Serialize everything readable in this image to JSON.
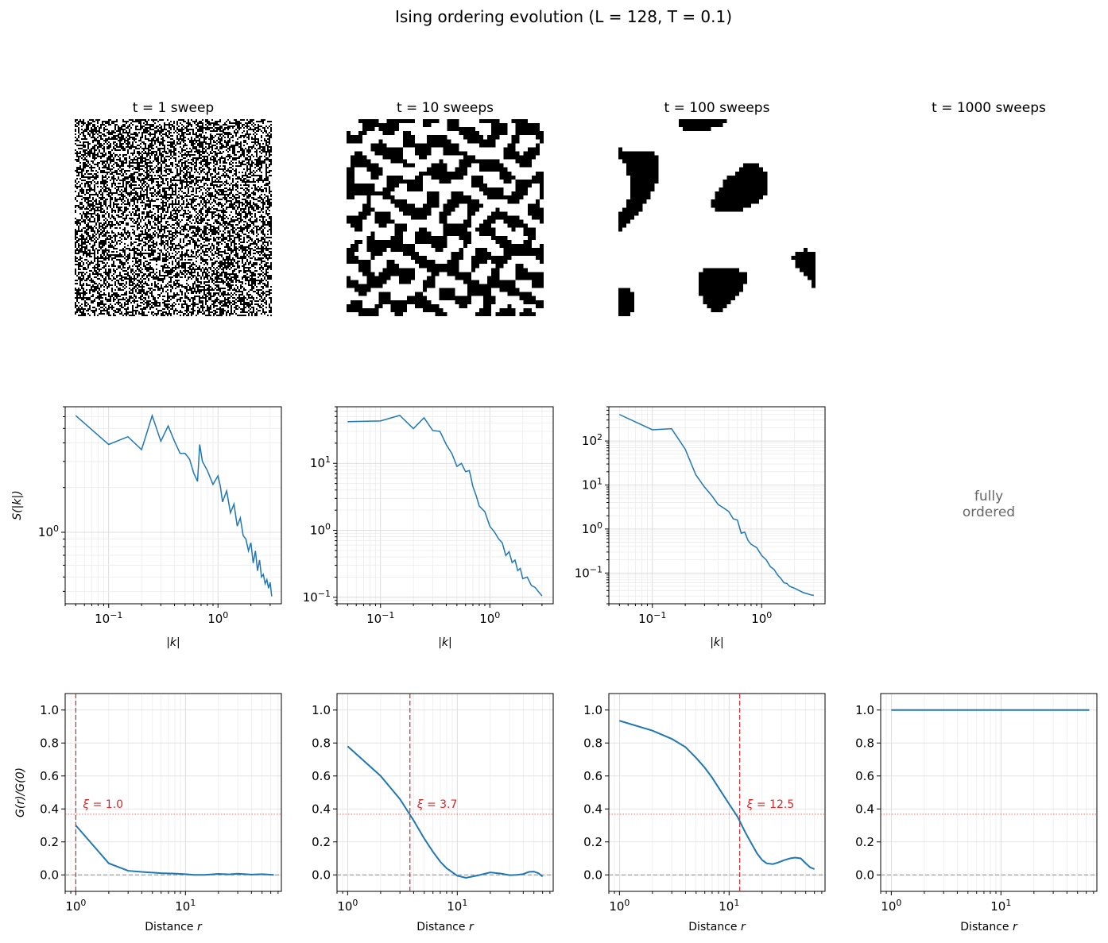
{
  "figure": {
    "title": "Ising ordering evolution  (L = 128, T = 0.1)"
  },
  "chart_data": [
    {
      "type": "heatmap",
      "title": "t = 1 sweep",
      "description_of_values": "random ±1 spins (binary image)",
      "grain": 2,
      "domain_scale": 0,
      "bias": 0.0
    },
    {
      "type": "heatmap",
      "title": "t = 10 sweeps",
      "grain": 5,
      "domain_scale": 28,
      "bias": 0.0
    },
    {
      "type": "heatmap",
      "title": "t = 100 sweeps",
      "grain": 5,
      "domain_scale": 90,
      "bias": 0.22
    },
    {
      "type": "heatmap",
      "title": "t = 1000 sweeps",
      "uniform": true
    },
    {
      "type": "line",
      "xscale": "log",
      "yscale": "log",
      "xlabel": "|k|",
      "ylabel": "S(|k|)",
      "xlim": [
        0.04,
        3.8
      ],
      "ylim": [
        0.33,
        7.0
      ],
      "xticks": [
        0.1,
        1.0
      ],
      "xticklabels": [
        "10⁻¹",
        "10⁰"
      ],
      "yticks": [
        1.0
      ],
      "yticklabels": [
        "10⁰"
      ],
      "x": [
        0.05,
        0.1,
        0.15,
        0.2,
        0.25,
        0.3,
        0.35,
        0.4,
        0.45,
        0.5,
        0.55,
        0.6,
        0.65,
        0.68,
        0.72,
        0.8,
        0.9,
        1.0,
        1.05,
        1.1,
        1.2,
        1.3,
        1.4,
        1.5,
        1.6,
        1.7,
        1.8,
        1.9,
        2.0,
        2.1,
        2.2,
        2.3,
        2.4,
        2.5,
        2.6,
        2.7,
        2.8,
        2.9,
        3.0,
        3.1
      ],
      "y": [
        6.1,
        3.9,
        4.4,
        3.6,
        6.1,
        4.1,
        5.2,
        4.1,
        3.4,
        3.4,
        3.1,
        2.5,
        2.2,
        3.9,
        3.0,
        2.6,
        2.1,
        2.4,
        2.05,
        1.6,
        1.9,
        1.35,
        1.55,
        1.1,
        1.25,
        0.95,
        0.9,
        0.75,
        0.85,
        0.62,
        0.75,
        0.55,
        0.65,
        0.5,
        0.52,
        0.45,
        0.48,
        0.42,
        0.46,
        0.37
      ]
    },
    {
      "type": "line",
      "xscale": "log",
      "yscale": "log",
      "xlabel": "|k|",
      "ylabel": "",
      "xlim": [
        0.04,
        3.8
      ],
      "ylim": [
        0.08,
        70
      ],
      "xticks": [
        0.1,
        1.0
      ],
      "xticklabels": [
        "10⁻¹",
        "10⁰"
      ],
      "yticks": [
        0.1,
        1.0,
        10.0
      ],
      "yticklabels": [
        "10⁻¹",
        "10⁰",
        "10¹"
      ],
      "x": [
        0.05,
        0.1,
        0.15,
        0.2,
        0.25,
        0.3,
        0.35,
        0.4,
        0.45,
        0.5,
        0.55,
        0.6,
        0.65,
        0.7,
        0.75,
        0.8,
        0.9,
        1.0,
        1.1,
        1.2,
        1.3,
        1.4,
        1.5,
        1.6,
        1.7,
        1.8,
        1.9,
        2.0,
        2.2,
        2.4,
        2.6,
        2.8,
        3.0
      ],
      "y": [
        42,
        43,
        52,
        33,
        48,
        31,
        30,
        19,
        14,
        9.0,
        10,
        7.5,
        7.8,
        4.5,
        3.3,
        2.3,
        1.9,
        1.15,
        0.95,
        0.75,
        0.65,
        0.42,
        0.48,
        0.33,
        0.36,
        0.25,
        0.27,
        0.19,
        0.2,
        0.15,
        0.14,
        0.12,
        0.105
      ]
    },
    {
      "type": "line",
      "xscale": "log",
      "yscale": "log",
      "xlabel": "|k|",
      "ylabel": "",
      "xlim": [
        0.04,
        3.8
      ],
      "ylim": [
        0.02,
        600
      ],
      "xticks": [
        0.1,
        1.0
      ],
      "xticklabels": [
        "10⁻¹",
        "10⁰"
      ],
      "yticks": [
        0.1,
        1.0,
        10.0,
        100.0
      ],
      "yticklabels": [
        "10⁻¹",
        "10⁰",
        "10¹",
        "10²"
      ],
      "x": [
        0.05,
        0.1,
        0.15,
        0.2,
        0.25,
        0.3,
        0.35,
        0.4,
        0.45,
        0.5,
        0.55,
        0.6,
        0.65,
        0.7,
        0.75,
        0.8,
        0.9,
        1.0,
        1.1,
        1.2,
        1.3,
        1.4,
        1.5,
        1.6,
        1.7,
        1.8,
        2.0,
        2.2,
        2.4,
        2.6,
        2.8,
        3.0
      ],
      "y": [
        400,
        180,
        190,
        65,
        17,
        9.0,
        5.7,
        3.6,
        3.0,
        2.5,
        1.7,
        1.6,
        0.8,
        0.85,
        0.55,
        0.45,
        0.38,
        0.25,
        0.2,
        0.14,
        0.12,
        0.09,
        0.075,
        0.06,
        0.058,
        0.05,
        0.045,
        0.04,
        0.036,
        0.034,
        0.032,
        0.031
      ]
    },
    {
      "type": "text",
      "text": [
        "fully",
        "ordered"
      ]
    },
    {
      "type": "line",
      "xscale": "log",
      "xlabel": "Distance r",
      "ylabel": "G(r)/G(0)",
      "xlim": [
        0.8,
        75
      ],
      "ylim": [
        -0.1,
        1.1
      ],
      "xticks": [
        1,
        10
      ],
      "xticklabels": [
        "10⁰",
        "10¹"
      ],
      "yticks": [
        0.0,
        0.2,
        0.4,
        0.6,
        0.8,
        1.0
      ],
      "yticklabels": [
        "0.0",
        "0.2",
        "0.4",
        "0.6",
        "0.8",
        "1.0"
      ],
      "x": [
        1,
        2,
        3,
        4,
        5,
        6,
        8,
        10,
        12,
        15,
        20,
        25,
        30,
        40,
        50,
        64
      ],
      "y": [
        0.3,
        0.07,
        0.025,
        0.018,
        0.014,
        0.01,
        0.008,
        0.004,
        0.0,
        0.0,
        0.006,
        0.003,
        0.007,
        0.002,
        0.004,
        0.0
      ],
      "xi": 1.0,
      "xi_label": "ξ = 1.0",
      "threshold": 0.368
    },
    {
      "type": "line",
      "xscale": "log",
      "xlabel": "Distance r",
      "ylabel": "",
      "xlim": [
        0.8,
        75
      ],
      "ylim": [
        -0.1,
        1.1
      ],
      "xticks": [
        1,
        10
      ],
      "xticklabels": [
        "10⁰",
        "10¹"
      ],
      "yticks": [
        0.0,
        0.2,
        0.4,
        0.6,
        0.8,
        1.0
      ],
      "yticklabels": [
        "0.0",
        "0.2",
        "0.4",
        "0.6",
        "0.8",
        "1.0"
      ],
      "x": [
        1,
        2,
        3,
        4,
        5,
        6,
        7,
        8,
        10,
        12,
        15,
        20,
        25,
        30,
        35,
        40,
        45,
        50,
        55,
        60
      ],
      "y": [
        0.78,
        0.6,
        0.46,
        0.33,
        0.22,
        0.14,
        0.08,
        0.04,
        -0.005,
        -0.018,
        -0.005,
        0.015,
        0.008,
        -0.002,
        0.0,
        0.005,
        0.018,
        0.02,
        0.01,
        -0.01
      ],
      "xi": 3.7,
      "xi_label": "ξ = 3.7",
      "threshold": 0.368
    },
    {
      "type": "line",
      "xscale": "log",
      "xlabel": "Distance r",
      "ylabel": "",
      "xlim": [
        0.8,
        75
      ],
      "ylim": [
        -0.1,
        1.1
      ],
      "xticks": [
        1,
        10
      ],
      "xticklabels": [
        "10⁰",
        "10¹"
      ],
      "yticks": [
        0.0,
        0.2,
        0.4,
        0.6,
        0.8,
        1.0
      ],
      "yticklabels": [
        "0.0",
        "0.2",
        "0.4",
        "0.6",
        "0.8",
        "1.0"
      ],
      "x": [
        1,
        2,
        3,
        4,
        5,
        6,
        7,
        8,
        10,
        12,
        14,
        16,
        18,
        20,
        22,
        25,
        28,
        32,
        36,
        40,
        45,
        50,
        55,
        60
      ],
      "y": [
        0.935,
        0.875,
        0.825,
        0.775,
        0.71,
        0.65,
        0.59,
        0.53,
        0.43,
        0.35,
        0.26,
        0.19,
        0.13,
        0.09,
        0.07,
        0.065,
        0.075,
        0.09,
        0.1,
        0.105,
        0.1,
        0.07,
        0.045,
        0.035
      ],
      "xi": 12.5,
      "xi_label": "ξ = 12.5",
      "threshold": 0.368
    },
    {
      "type": "line",
      "xscale": "log",
      "xlabel": "Distance r",
      "ylabel": "",
      "xlim": [
        0.8,
        75
      ],
      "ylim": [
        -0.1,
        1.1
      ],
      "xticks": [
        1,
        10
      ],
      "xticklabels": [
        "10⁰",
        "10¹"
      ],
      "yticks": [
        0.0,
        0.2,
        0.4,
        0.6,
        0.8,
        1.0
      ],
      "yticklabels": [
        "0.0",
        "0.2",
        "0.4",
        "0.6",
        "0.8",
        "1.0"
      ],
      "x": [
        1,
        64
      ],
      "y": [
        1.0,
        1.0
      ],
      "threshold": 0.368
    }
  ]
}
